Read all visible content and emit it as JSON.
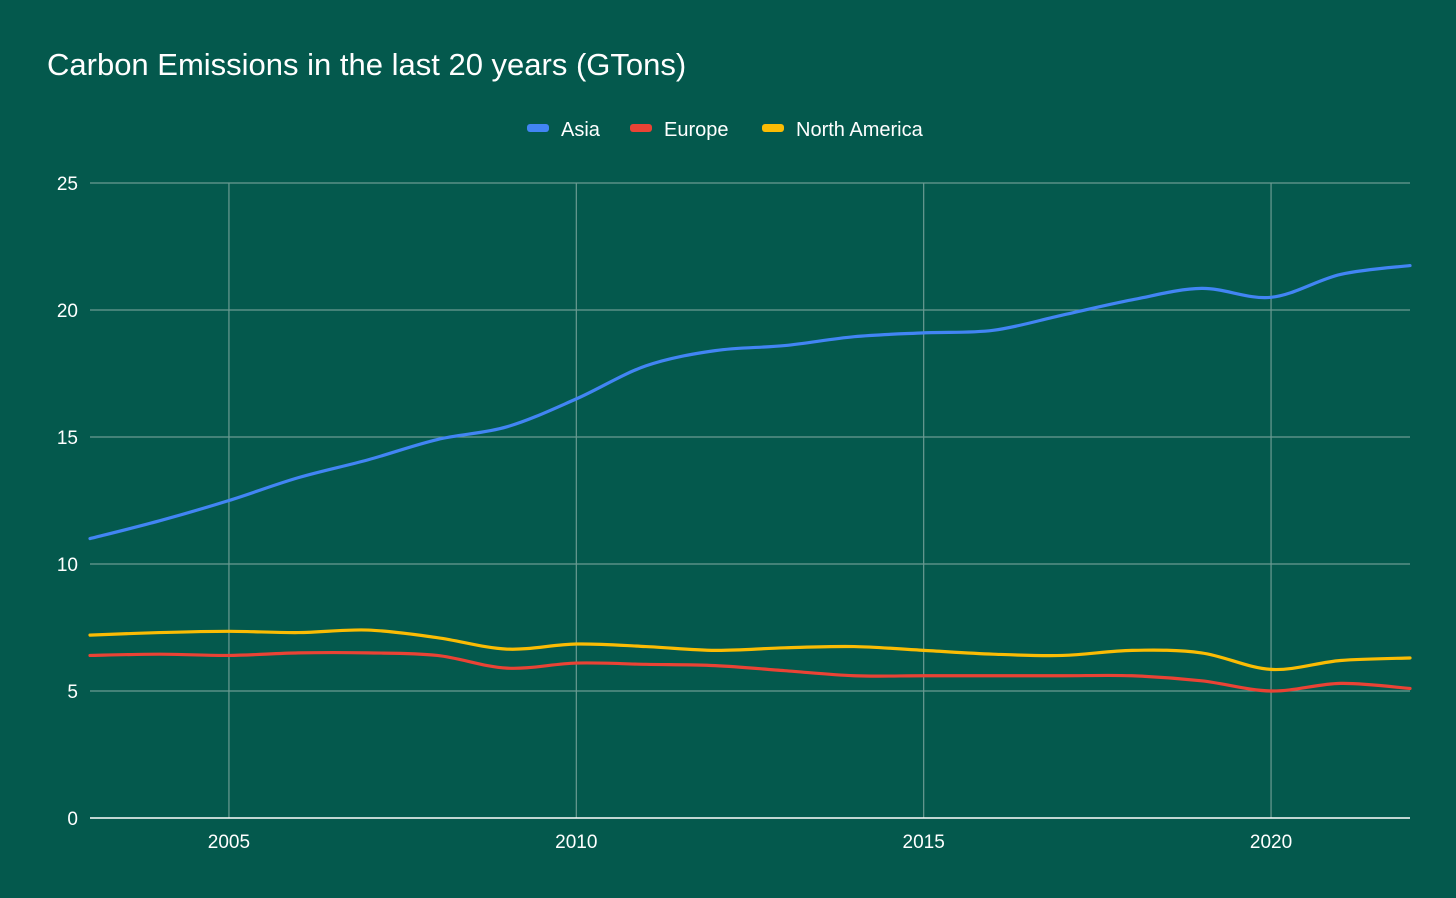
{
  "chart_data": {
    "type": "line",
    "title": "Carbon Emissions in the last 20 years (GTons)",
    "xlabel": "",
    "ylabel": "",
    "xlim": [
      2003,
      2022
    ],
    "ylim": [
      0,
      25
    ],
    "x_ticks": [
      2005,
      2010,
      2015,
      2020
    ],
    "y_ticks": [
      0,
      5,
      10,
      15,
      20,
      25
    ],
    "grid": true,
    "legend_position": "top-center",
    "x": [
      2003,
      2004,
      2005,
      2006,
      2007,
      2008,
      2009,
      2010,
      2011,
      2012,
      2013,
      2014,
      2015,
      2016,
      2017,
      2018,
      2019,
      2020,
      2021,
      2022
    ],
    "series": [
      {
        "name": "Asia",
        "color": "#4285f4",
        "values": [
          11.0,
          11.7,
          12.5,
          13.4,
          14.1,
          14.9,
          15.4,
          16.5,
          17.8,
          18.4,
          18.6,
          18.95,
          19.1,
          19.2,
          19.8,
          20.4,
          20.85,
          20.5,
          21.4,
          21.75
        ]
      },
      {
        "name": "Europe",
        "color": "#ea4335",
        "values": [
          6.4,
          6.45,
          6.4,
          6.5,
          6.5,
          6.4,
          5.9,
          6.1,
          6.05,
          6.0,
          5.8,
          5.6,
          5.6,
          5.6,
          5.6,
          5.6,
          5.4,
          5.0,
          5.3,
          5.1
        ]
      },
      {
        "name": "North America",
        "color": "#fbbc04",
        "values": [
          7.2,
          7.3,
          7.35,
          7.3,
          7.4,
          7.1,
          6.65,
          6.85,
          6.75,
          6.6,
          6.7,
          6.75,
          6.6,
          6.45,
          6.4,
          6.6,
          6.5,
          5.85,
          6.2,
          6.3
        ]
      }
    ]
  }
}
